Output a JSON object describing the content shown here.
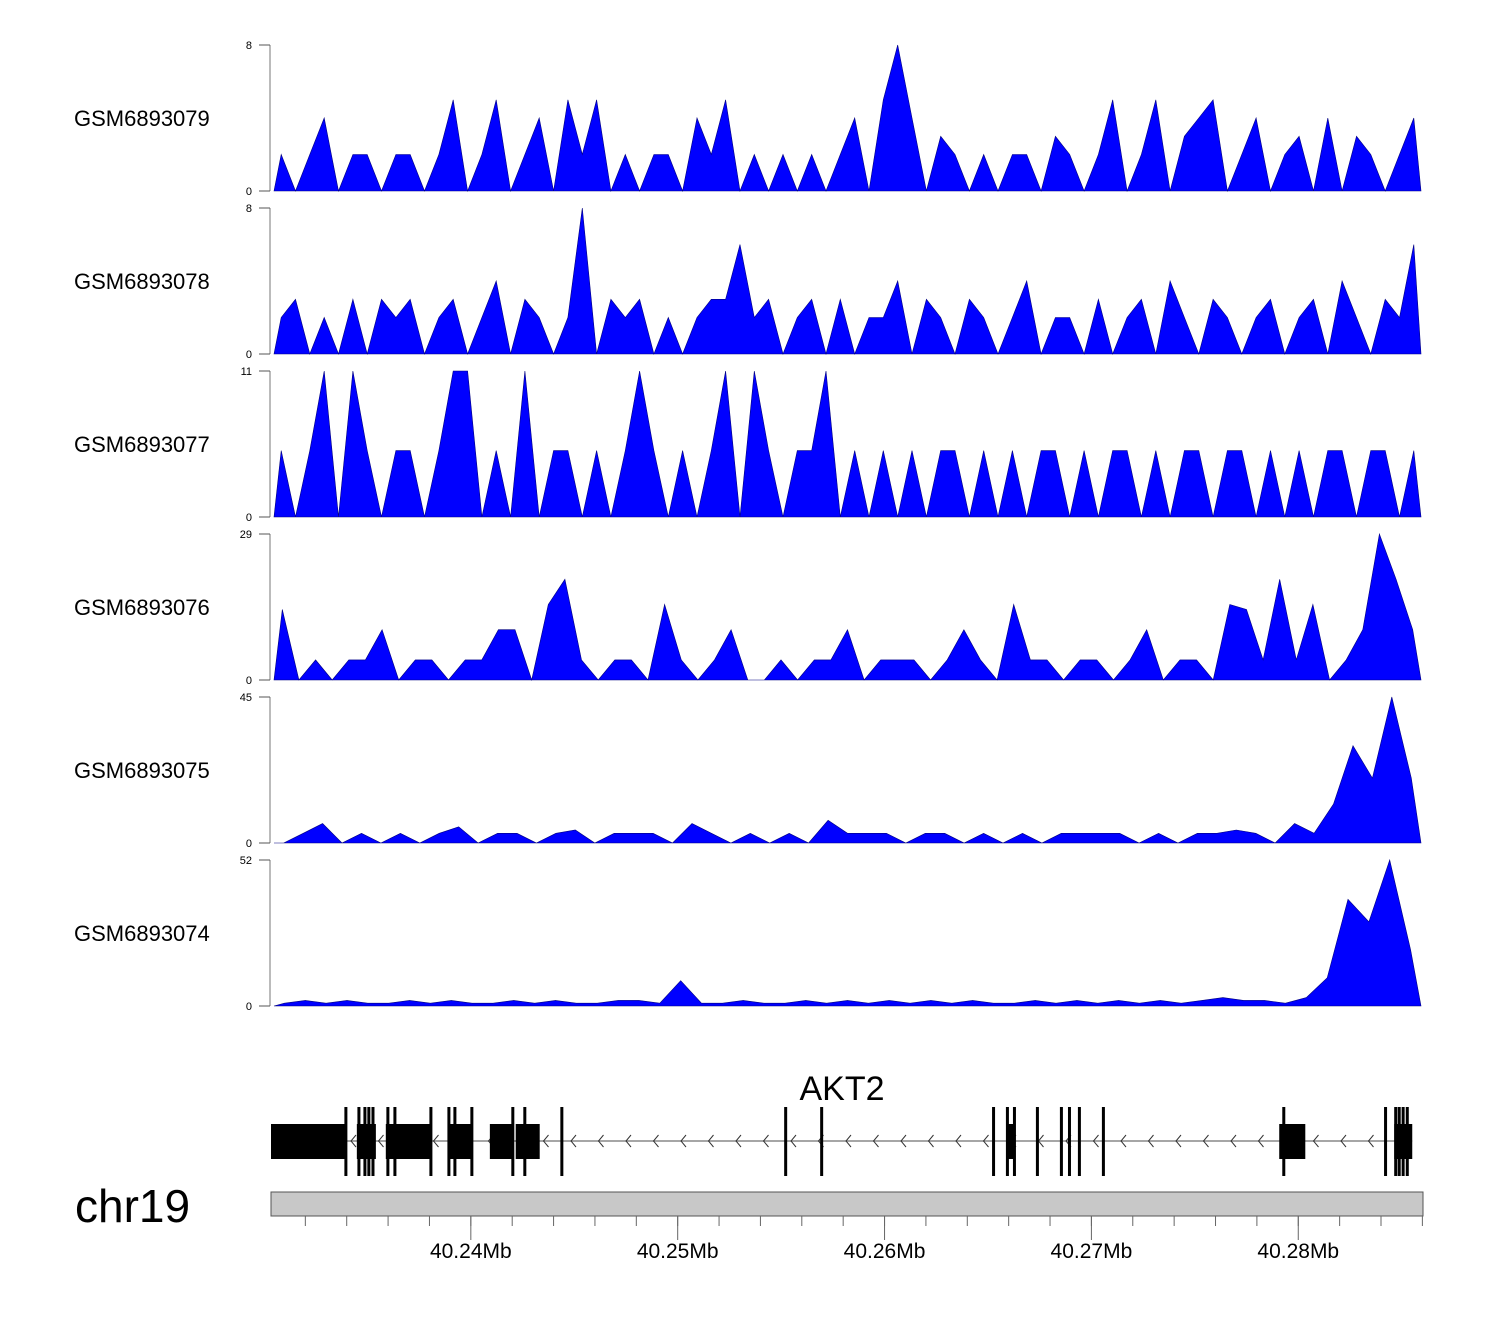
{
  "chart_data": {
    "type": "area",
    "chromosome": "chr19",
    "xlim_mb": [
      40.23034,
      40.28603
    ],
    "tracks": [
      {
        "name": "GSM6893079",
        "ylim": [
          0,
          8
        ],
        "tick_labels": [
          "0",
          "8"
        ],
        "values": [
          2,
          0,
          2,
          4,
          0,
          2,
          2,
          0,
          2,
          2,
          0,
          2,
          5,
          0,
          2,
          5,
          0,
          2,
          4,
          0,
          5,
          2,
          5,
          0,
          2,
          0,
          2,
          2,
          0,
          4,
          2,
          5,
          0,
          2,
          0,
          2,
          0,
          2,
          0,
          2,
          4,
          0,
          5,
          8,
          4,
          0,
          3,
          2,
          0,
          2,
          0,
          2,
          2,
          0,
          3,
          2,
          0,
          2,
          5,
          0,
          2,
          5,
          0,
          3,
          4,
          5,
          0,
          2,
          4,
          0,
          2,
          3,
          0,
          4,
          0,
          3,
          2,
          0,
          2,
          4
        ]
      },
      {
        "name": "GSM6893078",
        "ylim": [
          0,
          8
        ],
        "tick_labels": [
          "0",
          "8"
        ],
        "values": [
          2,
          3,
          0,
          2,
          0,
          3,
          0,
          3,
          2,
          3,
          0,
          2,
          3,
          0,
          2,
          4,
          0,
          3,
          2,
          0,
          2,
          8,
          0,
          3,
          2,
          3,
          0,
          2,
          0,
          2,
          3,
          3,
          6,
          2,
          3,
          0,
          2,
          3,
          0,
          3,
          0,
          2,
          2,
          4,
          0,
          3,
          2,
          0,
          3,
          2,
          0,
          2,
          4,
          0,
          2,
          2,
          0,
          3,
          0,
          2,
          3,
          0,
          4,
          2,
          0,
          3,
          2,
          0,
          2,
          3,
          0,
          2,
          3,
          0,
          4,
          2,
          0,
          3,
          2,
          6
        ]
      },
      {
        "name": "GSM6893077",
        "ylim": [
          0,
          11
        ],
        "tick_labels": [
          "0",
          "11"
        ],
        "values": [
          5,
          0,
          5,
          11,
          0,
          11,
          5,
          0,
          5,
          5,
          0,
          5,
          11,
          11,
          0,
          5,
          0,
          11,
          0,
          5,
          5,
          0,
          5,
          0,
          5,
          11,
          5,
          0,
          5,
          0,
          5,
          11,
          0,
          11,
          5,
          0,
          5,
          5,
          11,
          0,
          5,
          0,
          5,
          0,
          5,
          0,
          5,
          5,
          0,
          5,
          0,
          5,
          0,
          5,
          5,
          0,
          5,
          0,
          5,
          5,
          0,
          5,
          0,
          5,
          5,
          0,
          5,
          5,
          0,
          5,
          0,
          5,
          0,
          5,
          5,
          0,
          5,
          5,
          0,
          5
        ]
      },
      {
        "name": "GSM6893076",
        "ylim": [
          0,
          29
        ],
        "tick_labels": [
          "0",
          "29"
        ],
        "values": [
          14,
          0,
          4,
          0,
          4,
          4,
          10,
          0,
          4,
          4,
          0,
          4,
          4,
          10,
          10,
          0,
          15,
          20,
          4,
          0,
          4,
          4,
          0,
          15,
          4,
          0,
          4,
          10,
          0,
          0,
          4,
          0,
          4,
          4,
          10,
          0,
          4,
          4,
          4,
          0,
          4,
          10,
          4,
          0,
          15,
          4,
          4,
          0,
          4,
          4,
          0,
          4,
          10,
          0,
          4,
          4,
          0,
          15,
          14,
          4,
          20,
          4,
          15,
          0,
          4,
          10,
          29,
          20,
          10
        ]
      },
      {
        "name": "GSM6893075",
        "ylim": [
          0,
          45
        ],
        "tick_labels": [
          "0",
          "45"
        ],
        "values": [
          0,
          3,
          6,
          0,
          3,
          0,
          3,
          0,
          3,
          5,
          0,
          3,
          3,
          0,
          3,
          4,
          0,
          3,
          3,
          3,
          0,
          6,
          3,
          0,
          3,
          0,
          3,
          0,
          7,
          3,
          3,
          3,
          0,
          3,
          3,
          0,
          3,
          0,
          3,
          0,
          3,
          3,
          3,
          3,
          0,
          3,
          0,
          3,
          3,
          4,
          3,
          0,
          6,
          3,
          12,
          30,
          20,
          45,
          20
        ]
      },
      {
        "name": "GSM6893074",
        "ylim": [
          0,
          52
        ],
        "tick_labels": [
          "0",
          "52"
        ],
        "values": [
          1,
          2,
          1,
          2,
          1,
          1,
          2,
          1,
          2,
          1,
          1,
          2,
          1,
          2,
          1,
          1,
          2,
          2,
          1,
          9,
          1,
          1,
          2,
          1,
          1,
          2,
          1,
          2,
          1,
          2,
          1,
          2,
          1,
          2,
          1,
          1,
          2,
          1,
          2,
          1,
          2,
          1,
          2,
          1,
          2,
          3,
          2,
          2,
          1,
          3,
          10,
          38,
          30,
          52,
          20
        ]
      }
    ],
    "gene": {
      "name": "AKT2",
      "strand": "-",
      "start_mb": 40.23034,
      "end_mb": 40.28551,
      "utr_blocks_mb": [
        [
          40.23034,
          40.23396
        ],
        [
          40.23449,
          40.23541
        ],
        [
          40.23589,
          40.23807
        ],
        [
          40.23894,
          40.2401
        ],
        [
          40.24092,
          40.24203
        ],
        [
          40.24217,
          40.24333
        ],
        [
          40.26594,
          40.26628
        ],
        [
          40.27908,
          40.28034
        ],
        [
          40.28464,
          40.28551
        ]
      ],
      "coding_exons_mb": [
        40.23396,
        40.23459,
        40.23488,
        40.23507,
        40.23527,
        40.23599,
        40.23633,
        40.23807,
        40.23894,
        40.23923,
        40.24005,
        40.24203,
        40.24261,
        40.2444,
        40.25522,
        40.25696,
        40.26527,
        40.26594,
        40.26628,
        40.26739,
        40.26855,
        40.26894,
        40.26942,
        40.27058,
        40.2793,
        40.28422,
        40.28471,
        40.28488,
        40.28507,
        40.28527
      ]
    },
    "axis": {
      "minor_tick_step_mb": 0.002,
      "major_ticks_mb": [
        40.24,
        40.25,
        40.26,
        40.27,
        40.28
      ],
      "major_tick_labels": [
        "40.24Mb",
        "40.25Mb",
        "40.26Mb",
        "40.27Mb",
        "40.28Mb"
      ]
    },
    "colors": {
      "signal": "#0000ff",
      "gene": "#000000",
      "ideogram": "#c8c8c8"
    }
  }
}
